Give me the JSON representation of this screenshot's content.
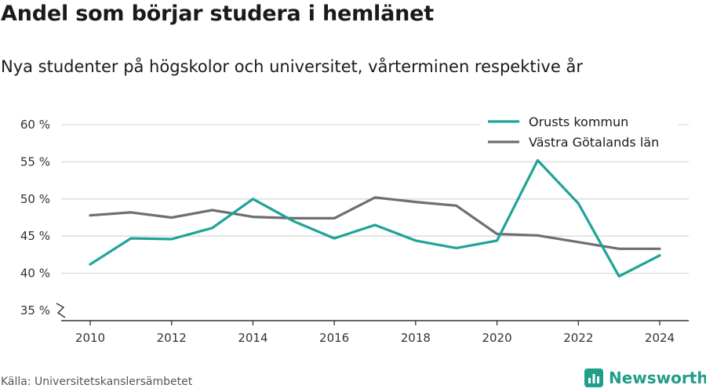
{
  "header": {
    "title": "Andel som börjar studera i hemlänet",
    "subtitle": "Nya studenter på högskolor och universitet, vårterminen respektive år"
  },
  "footer": {
    "source": "Källa: Universitetskanslersämbetet",
    "brand": "Newsworthy",
    "brand_color": "#1f9e89"
  },
  "chart_data": {
    "type": "line",
    "title": "Andel som börjar studera i hemlänet",
    "subtitle": "Nya studenter på högskolor och universitet, vårterminen respektive år",
    "xlabel": "",
    "ylabel": "",
    "x": [
      2010,
      2011,
      2012,
      2013,
      2014,
      2015,
      2016,
      2017,
      2018,
      2019,
      2020,
      2021,
      2022,
      2023,
      2024
    ],
    "x_ticks": [
      2010,
      2012,
      2014,
      2016,
      2018,
      2020,
      2022,
      2024
    ],
    "x_tick_labels": [
      "2010",
      "2012",
      "2014",
      "2016",
      "2018",
      "2020",
      "2022",
      "2024"
    ],
    "ylim": [
      35,
      60
    ],
    "y_ticks": [
      35,
      40,
      45,
      50,
      55,
      60
    ],
    "y_tick_labels": [
      "35 %",
      "40 %",
      "45 %",
      "50 %",
      "55 %",
      "60 %"
    ],
    "y_axis_break": true,
    "grid": "horizontal",
    "legend_position": "top-right",
    "series": [
      {
        "name": "Orusts kommun",
        "color": "#1fa398",
        "values": [
          41.2,
          44.7,
          44.6,
          46.1,
          50.0,
          47.0,
          44.7,
          46.5,
          44.4,
          43.4,
          44.4,
          55.2,
          49.4,
          39.6,
          42.4
        ]
      },
      {
        "name": "Västra Götalands län",
        "color": "#6e6e73",
        "values": [
          47.8,
          48.2,
          47.5,
          48.5,
          47.6,
          47.4,
          47.4,
          50.2,
          49.6,
          49.1,
          45.3,
          45.1,
          44.2,
          43.3,
          43.3
        ]
      }
    ]
  }
}
